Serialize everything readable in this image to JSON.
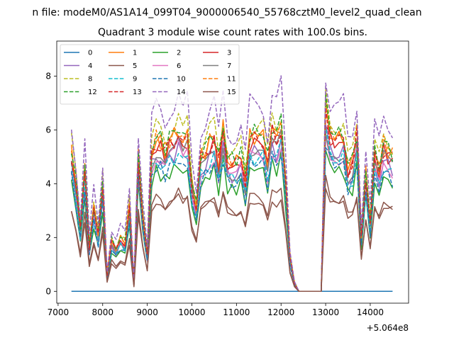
{
  "chart_data": {
    "type": "line",
    "suptitle": "n file: modeM0/AS1A14_099T04_9000006540_55768cztM0_level2_quad_clean",
    "title": "Quadrant 3 module wise count rates with 100.0s bins.",
    "xlabel": "",
    "ylabel": "",
    "x_offset_label": "+5.064e8",
    "xlim": [
      6970,
      14860
    ],
    "ylim": [
      -0.44,
      9.3
    ],
    "xticks": [
      7000,
      8000,
      9000,
      10000,
      11000,
      12000,
      13000,
      14000
    ],
    "xtick_labels": [
      "7000",
      "8000",
      "9000",
      "10000",
      "11000",
      "12000",
      "13000",
      "14000"
    ],
    "yticks": [
      0,
      2,
      4,
      6,
      8
    ],
    "ytick_labels": [
      "0",
      "2",
      "4",
      "6",
      "8"
    ],
    "grid": false,
    "legend_location": "upper-left",
    "legend_columns": 4,
    "x_start": 7300,
    "x_step": 100,
    "base_profile": [
      5.0,
      3.8,
      2.2,
      4.4,
      1.6,
      3.0,
      2.0,
      3.8,
      0.6,
      1.8,
      1.5,
      1.9,
      1.7,
      3.0,
      0.3,
      4.8,
      2.8,
      1.3,
      5.0,
      5.4,
      5.3,
      5.0,
      5.4,
      5.5,
      5.8,
      5.2,
      5.6,
      3.8,
      3.0,
      4.8,
      5.0,
      5.3,
      5.5,
      4.6,
      5.8,
      4.7,
      4.6,
      4.6,
      4.9,
      4.0,
      5.5,
      5.5,
      5.6,
      5.5,
      4.6,
      5.8,
      5.5,
      6.0,
      4.0,
      1.2,
      0.3,
      0.0,
      0.0,
      0.0,
      0.0,
      0.0,
      0.0,
      6.5,
      5.6,
      5.6,
      5.4,
      5.5,
      4.4,
      4.6,
      5.6,
      2.0,
      4.2,
      2.5,
      4.8,
      4.4,
      5.2,
      5.0,
      4.8
    ],
    "series": [
      {
        "name": "0",
        "color": "#1f77b4",
        "dash": "solid",
        "scale": 0,
        "values": []
      },
      {
        "name": "1",
        "color": "#ff7f0e",
        "dash": "solid",
        "scale": 1.04,
        "values": []
      },
      {
        "name": "2",
        "color": "#2ca02c",
        "dash": "solid",
        "scale": 0.82,
        "values": []
      },
      {
        "name": "3",
        "color": "#d62728",
        "dash": "solid",
        "scale": 1.0,
        "values": []
      },
      {
        "name": "4",
        "color": "#9467bd",
        "dash": "solid",
        "scale": 0.93,
        "values": []
      },
      {
        "name": "5",
        "color": "#8c564b",
        "dash": "solid",
        "scale": 0.63,
        "values": []
      },
      {
        "name": "6",
        "color": "#e377c2",
        "dash": "solid",
        "scale": 0.92,
        "values": []
      },
      {
        "name": "7",
        "color": "#7f7f7f",
        "dash": "solid",
        "scale": 0.95,
        "values": []
      },
      {
        "name": "8",
        "color": "#bcbd22",
        "dash": "dashed",
        "scale": 1.12,
        "values": []
      },
      {
        "name": "9",
        "color": "#17becf",
        "dash": "dashed",
        "scale": 0.9,
        "values": []
      },
      {
        "name": "10",
        "color": "#1f77b4",
        "dash": "dashed",
        "scale": 0.86,
        "values": []
      },
      {
        "name": "11",
        "color": "#ff7f0e",
        "dash": "dashed",
        "scale": 1.05,
        "values": []
      },
      {
        "name": "12",
        "color": "#2ca02c",
        "dash": "dashed",
        "scale": 1.07,
        "values": []
      },
      {
        "name": "13",
        "color": "#d62728",
        "dash": "dashed",
        "scale": 1.02,
        "values": []
      },
      {
        "name": "14",
        "color": "#9467bd",
        "dash": "dashed",
        "scale": 1.26,
        "values": []
      },
      {
        "name": "15",
        "color": "#8c564b",
        "dash": "solid",
        "scale": 0.6,
        "values": []
      }
    ]
  }
}
